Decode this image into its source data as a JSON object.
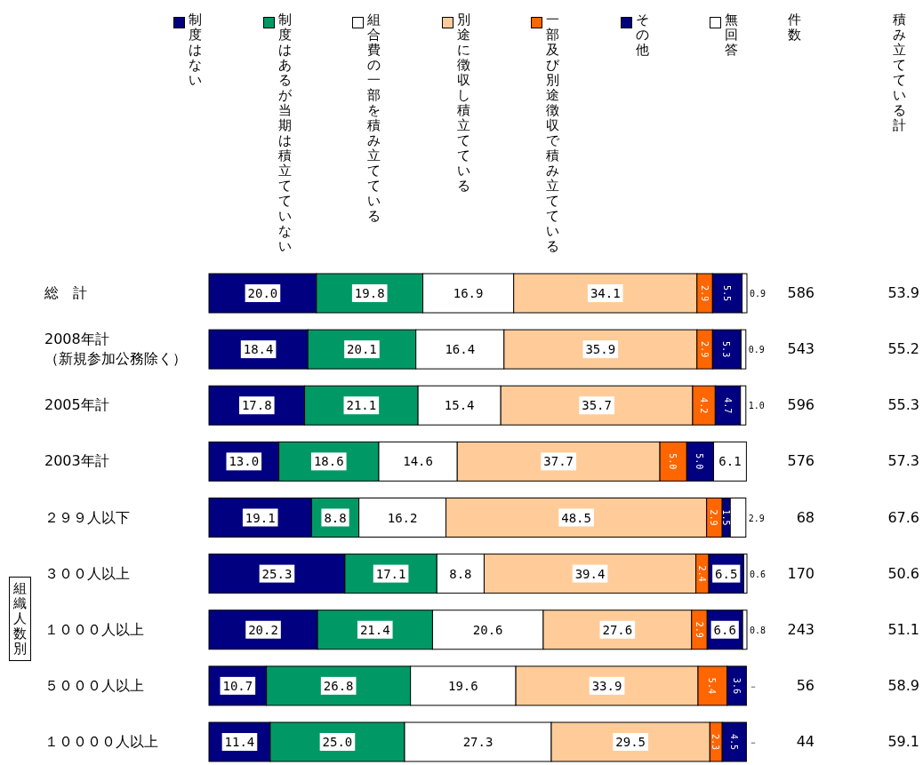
{
  "chart_data": [
    {
      "type": "bar",
      "orientation": "horizontal",
      "stacked": true,
      "legend": "top",
      "categories": [
        "総　計",
        "2008年計（新規参加公務除く）",
        "2005年計",
        "2003年計",
        "２９９人以下",
        "３００人以上",
        "１０００人以上",
        "５０００人以上",
        "１００００人以上"
      ],
      "series": [
        {
          "name": "制度はない",
          "color": "#000080",
          "values": [
            20.0,
            18.4,
            17.8,
            13.0,
            19.1,
            25.3,
            20.2,
            10.7,
            11.4
          ],
          "value_labels": [
            "20.0",
            "18.4",
            "17.8",
            "13.0",
            "19.1",
            "25.3",
            "20.2",
            "10.7",
            "11.4"
          ]
        },
        {
          "name": "制度はあるが当期は積立てていない",
          "color": "#009966",
          "values": [
            19.8,
            20.1,
            21.1,
            18.6,
            8.8,
            17.1,
            21.4,
            26.8,
            25.0
          ],
          "value_labels": [
            "19.8",
            "20.1",
            "21.1",
            "18.6",
            "8.8",
            "17.1",
            "21.4",
            "26.8",
            "25.0"
          ]
        },
        {
          "name": "組合費の一部を積み立てている",
          "color": "#ffffff",
          "values": [
            16.9,
            16.4,
            15.4,
            14.6,
            16.2,
            8.8,
            20.6,
            19.6,
            27.3
          ],
          "value_labels": [
            "16.9",
            "16.4",
            "15.4",
            "14.6",
            "16.2",
            "8.8",
            "20.6",
            "19.6",
            "27.3"
          ]
        },
        {
          "name": "別途に徴収し積立てている",
          "color": "#ffcc99",
          "values": [
            34.1,
            35.9,
            35.7,
            37.7,
            48.5,
            39.4,
            27.6,
            33.9,
            29.5
          ],
          "value_labels": [
            "34.1",
            "35.9",
            "35.7",
            "37.7",
            "48.5",
            "39.4",
            "27.6",
            "33.9",
            "29.5"
          ]
        },
        {
          "name": "一部及び別途徴収で積み立てている",
          "color": "#ff6600",
          "values": [
            2.9,
            2.9,
            4.2,
            5.0,
            2.9,
            2.4,
            2.9,
            5.4,
            2.3
          ],
          "value_labels": [
            "2.9",
            "2.9",
            "4.2",
            "5.0",
            "2.9",
            "2.4",
            "2.9",
            "5.4",
            "2.3"
          ]
        },
        {
          "name": "その他",
          "color": "#000080",
          "values": [
            5.5,
            5.3,
            4.7,
            5.0,
            1.5,
            6.5,
            6.6,
            3.6,
            4.5
          ],
          "value_labels": [
            "5.5",
            "5.3",
            "4.7",
            "5.0",
            "1.5",
            "6.5",
            "6.6",
            "3.6",
            "4.5"
          ]
        },
        {
          "name": "無回答",
          "color": "#ffffff",
          "values": [
            0.9,
            0.9,
            1.0,
            6.1,
            2.9,
            0.6,
            0.8,
            0,
            0
          ],
          "value_labels": [
            "0.9",
            "0.9",
            "1.0",
            "6.1",
            "2.9",
            "0.6",
            "0.8",
            "－",
            "－"
          ]
        }
      ],
      "annotations": [
        "組織人数別"
      ]
    },
    {
      "type": "other",
      "title": "件数",
      "data_labels": true,
      "values": [
        586,
        543,
        596,
        576,
        68,
        170,
        243,
        56,
        44
      ]
    },
    {
      "type": "other",
      "title": "積み立てている計",
      "data_labels": true,
      "values": [
        53.9,
        55.2,
        55.3,
        57.3,
        67.6,
        50.6,
        51.1,
        58.9,
        59.1
      ]
    }
  ]
}
